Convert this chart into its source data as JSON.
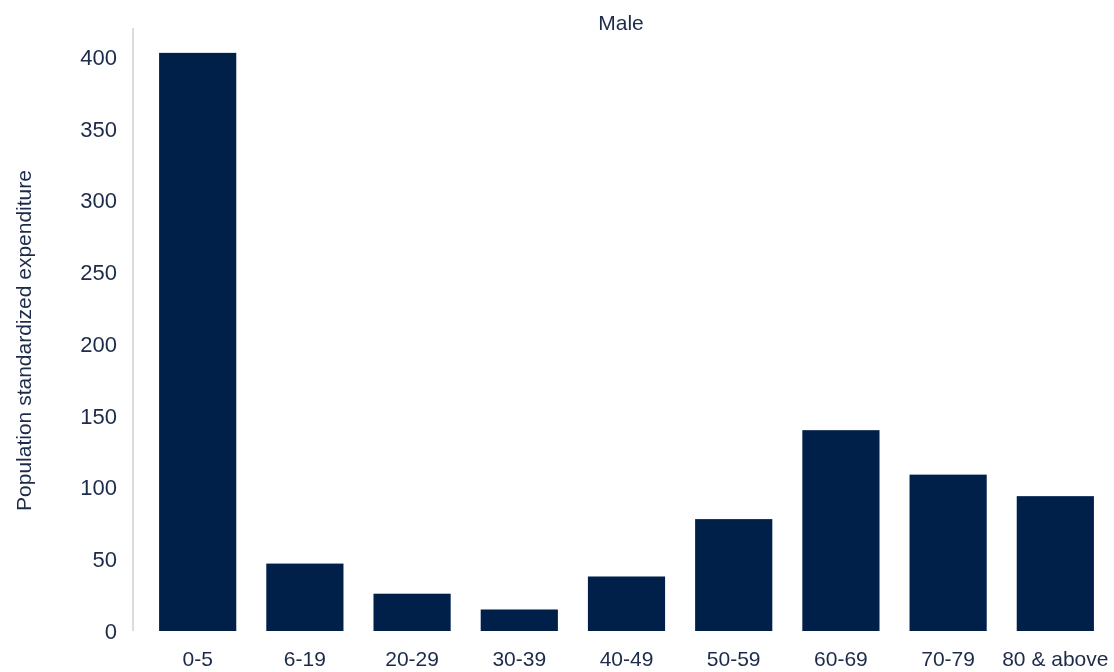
{
  "chart_data": {
    "type": "bar",
    "title": "Male",
    "ylabel": "Population standardized expenditure",
    "categories": [
      "0-5",
      "6-19",
      "20-29",
      "30-39",
      "40-49",
      "50-59",
      "60-69",
      "70-79",
      "80 & above"
    ],
    "values": [
      403,
      47,
      26,
      15,
      38,
      78,
      140,
      109,
      94
    ],
    "color": "#00204a",
    "ylim": [
      0,
      405
    ],
    "yticks": [
      0,
      50,
      100,
      150,
      200,
      250,
      300,
      350,
      400
    ],
    "grid": false
  }
}
